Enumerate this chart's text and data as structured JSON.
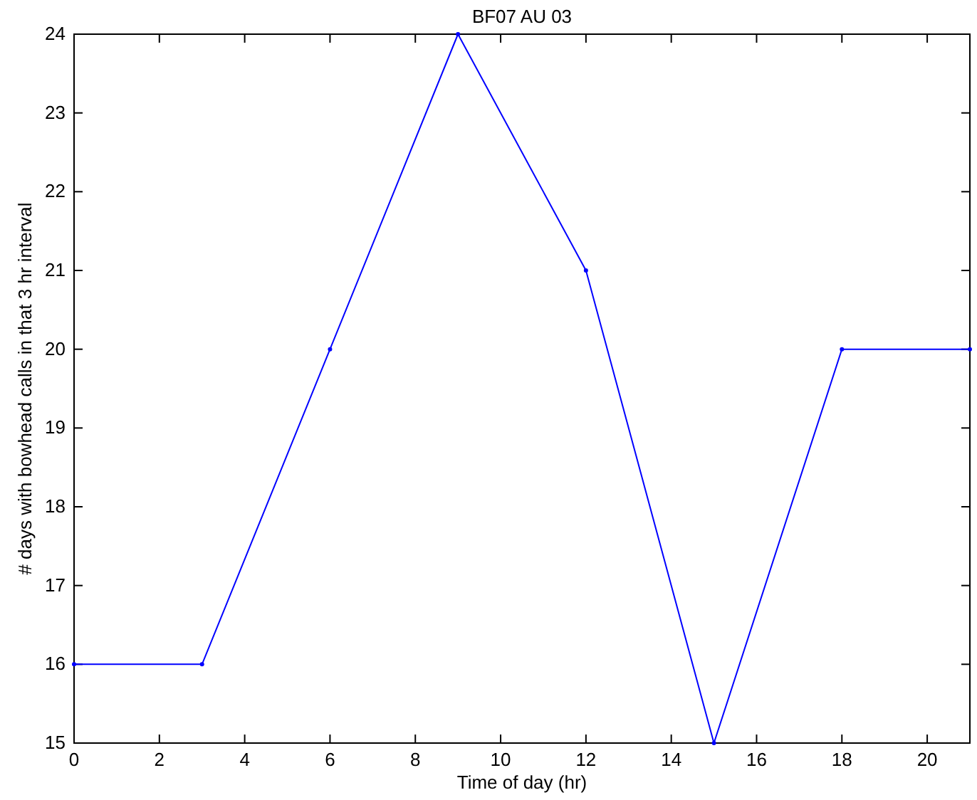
{
  "chart_data": {
    "type": "line",
    "title": "BF07 AU 03",
    "xlabel": "Time of day (hr)",
    "ylabel": "# days with bowhead calls in that 3 hr interval",
    "x": [
      0,
      3,
      6,
      9,
      12,
      15,
      18,
      21
    ],
    "series": [
      {
        "color": "#0000ff",
        "values": [
          16,
          16,
          20,
          24,
          21,
          15,
          20,
          20
        ]
      }
    ],
    "xlim": [
      0,
      21
    ],
    "xticks": [
      0,
      2,
      4,
      6,
      8,
      10,
      12,
      14,
      16,
      18,
      20
    ],
    "ylim": [
      15,
      24
    ],
    "yticks": [
      15,
      16,
      17,
      18,
      19,
      20,
      21,
      22,
      23,
      24
    ],
    "grid": false,
    "marker": "circle",
    "line_style": "solid"
  }
}
